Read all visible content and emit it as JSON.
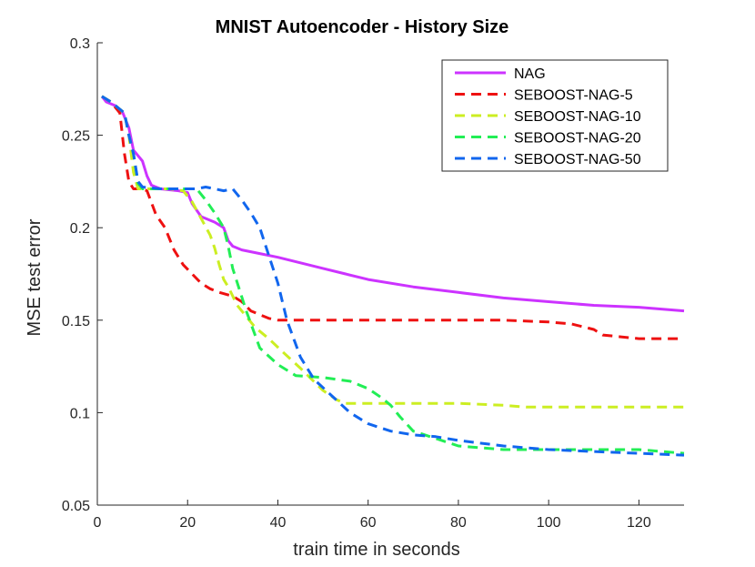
{
  "chart_data": {
    "type": "line",
    "title": "MNIST Autoencoder - History Size",
    "xlabel": "train time in seconds",
    "ylabel": "MSE test error",
    "xlim": [
      0,
      130
    ],
    "ylim": [
      0.05,
      0.3
    ],
    "xticks": [
      0,
      20,
      40,
      60,
      80,
      100,
      120
    ],
    "xtick_labels": [
      "0",
      "20",
      "40",
      "60",
      "80",
      "100",
      "120"
    ],
    "yticks": [
      0.05,
      0.1,
      0.15,
      0.2,
      0.25,
      0.3
    ],
    "ytick_labels": [
      "0.05",
      "0.1",
      "0.15",
      "0.2",
      "0.25",
      "0.3"
    ],
    "grid": false,
    "legend_position": "top-right",
    "series": [
      {
        "name": "NAG",
        "color": "#cc33ff",
        "dash": "solid",
        "x": [
          1,
          2,
          4,
          5.5,
          7,
          8,
          10,
          11,
          12,
          14,
          18,
          20,
          21,
          23,
          26,
          28,
          29,
          30,
          32,
          36,
          40,
          45,
          50,
          55,
          60,
          70,
          80,
          90,
          100,
          110,
          120,
          130
        ],
        "y": [
          0.271,
          0.268,
          0.266,
          0.263,
          0.254,
          0.242,
          0.236,
          0.228,
          0.223,
          0.221,
          0.22,
          0.219,
          0.213,
          0.206,
          0.203,
          0.2,
          0.193,
          0.19,
          0.188,
          0.186,
          0.184,
          0.181,
          0.178,
          0.175,
          0.172,
          0.168,
          0.165,
          0.162,
          0.16,
          0.158,
          0.157,
          0.155
        ]
      },
      {
        "name": "SEBOOST-NAG-5",
        "color": "#ee1111",
        "dash": "dashed",
        "x": [
          1,
          3,
          5,
          6,
          7,
          8,
          9,
          10,
          11,
          13,
          15,
          17,
          19,
          21,
          23,
          25,
          27,
          30,
          32,
          34,
          36,
          38,
          40,
          45,
          50,
          55,
          60,
          70,
          80,
          90,
          100,
          105,
          110,
          112,
          116,
          120,
          130
        ],
        "y": [
          0.271,
          0.268,
          0.262,
          0.24,
          0.225,
          0.221,
          0.221,
          0.221,
          0.22,
          0.207,
          0.2,
          0.188,
          0.18,
          0.175,
          0.17,
          0.167,
          0.165,
          0.163,
          0.16,
          0.155,
          0.153,
          0.151,
          0.15,
          0.15,
          0.15,
          0.15,
          0.15,
          0.15,
          0.15,
          0.15,
          0.149,
          0.148,
          0.145,
          0.142,
          0.141,
          0.14,
          0.14
        ]
      },
      {
        "name": "SEBOOST-NAG-10",
        "color": "#ccee22",
        "dash": "dashed",
        "x": [
          1,
          3,
          6,
          7,
          8,
          9,
          10,
          13,
          16,
          19,
          21,
          23,
          25,
          26,
          27,
          28,
          29,
          31,
          33,
          35,
          38,
          41,
          45,
          50,
          53,
          55,
          60,
          70,
          80,
          90,
          95,
          100,
          110,
          120,
          130
        ],
        "y": [
          0.271,
          0.268,
          0.262,
          0.25,
          0.23,
          0.221,
          0.221,
          0.221,
          0.221,
          0.22,
          0.214,
          0.205,
          0.196,
          0.189,
          0.18,
          0.172,
          0.168,
          0.158,
          0.152,
          0.146,
          0.14,
          0.133,
          0.124,
          0.112,
          0.107,
          0.105,
          0.105,
          0.105,
          0.105,
          0.104,
          0.103,
          0.103,
          0.103,
          0.103,
          0.103
        ]
      },
      {
        "name": "SEBOOST-NAG-20",
        "color": "#22ee55",
        "dash": "dashed",
        "x": [
          1,
          3,
          6,
          7,
          8,
          9,
          10,
          14,
          18,
          22,
          24,
          26,
          28,
          29,
          30,
          33,
          36,
          40,
          44,
          50,
          56,
          60,
          63,
          65,
          67,
          70,
          75,
          80,
          90,
          100,
          110,
          120,
          130
        ],
        "y": [
          0.271,
          0.268,
          0.262,
          0.25,
          0.24,
          0.224,
          0.221,
          0.221,
          0.221,
          0.221,
          0.215,
          0.208,
          0.2,
          0.19,
          0.178,
          0.155,
          0.135,
          0.126,
          0.12,
          0.119,
          0.117,
          0.113,
          0.108,
          0.104,
          0.098,
          0.09,
          0.086,
          0.082,
          0.08,
          0.08,
          0.08,
          0.08,
          0.078
        ]
      },
      {
        "name": "SEBOOST-NAG-50",
        "color": "#1166ee",
        "dash": "dashed",
        "x": [
          1,
          3,
          6,
          7,
          8,
          9,
          10,
          14,
          18,
          22,
          24,
          26,
          28,
          30,
          32,
          34,
          36,
          38,
          40,
          42,
          45,
          48,
          52,
          56,
          60,
          65,
          70,
          75,
          80,
          90,
          100,
          110,
          120,
          130
        ],
        "y": [
          0.271,
          0.268,
          0.262,
          0.25,
          0.24,
          0.225,
          0.222,
          0.221,
          0.221,
          0.221,
          0.222,
          0.221,
          0.22,
          0.221,
          0.215,
          0.208,
          0.2,
          0.185,
          0.17,
          0.15,
          0.13,
          0.118,
          0.109,
          0.1,
          0.094,
          0.09,
          0.088,
          0.087,
          0.085,
          0.082,
          0.08,
          0.079,
          0.078,
          0.077
        ]
      }
    ]
  }
}
